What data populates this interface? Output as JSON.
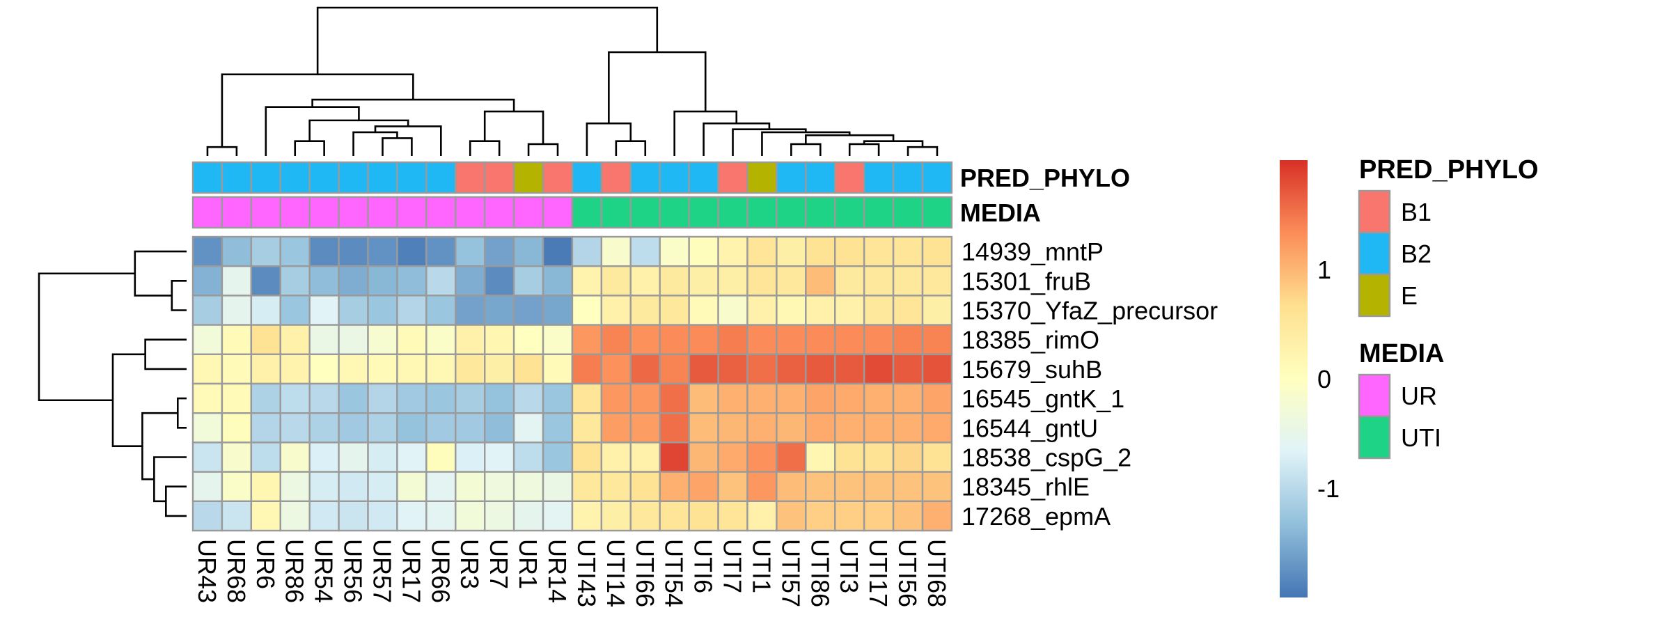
{
  "chart_data": {
    "type": "heatmap",
    "title": "",
    "columns": [
      "UR43",
      "UR68",
      "UR6",
      "UR86",
      "UR54",
      "UR56",
      "UR57",
      "UR17",
      "UR66",
      "UR3",
      "UR7",
      "UR1",
      "UR14",
      "UTI43",
      "UTI14",
      "UTI66",
      "UTI54",
      "UTI6",
      "UTI7",
      "UTI1",
      "UTI57",
      "UTI86",
      "UTI3",
      "UTI17",
      "UTI56",
      "UTI68"
    ],
    "rows": [
      "14939_mntP",
      "15301_fruB",
      "15370_YfaZ_precursor",
      "18385_rimO",
      "15679_suhB",
      "16545_gntK_1",
      "16544_gntU",
      "18538_cspG_2",
      "18345_rhlE",
      "17268_epmA"
    ],
    "values": [
      [
        -1.75,
        -1.35,
        -1.15,
        -1.25,
        -1.8,
        -1.8,
        -1.75,
        -1.9,
        -1.75,
        -1.3,
        -1.6,
        -1.4,
        -1.95,
        -1.05,
        -0.15,
        -0.95,
        -0.1,
        0.05,
        0.25,
        0.55,
        0.35,
        0.6,
        0.6,
        0.55,
        0.55,
        0.6
      ],
      [
        -1.45,
        -0.55,
        -1.8,
        -1.15,
        -1.35,
        -1.5,
        -1.4,
        -1.35,
        -1.0,
        -1.5,
        -1.8,
        -1.15,
        -1.4,
        0.25,
        0.45,
        0.3,
        0.45,
        0.35,
        0.35,
        0.55,
        0.5,
        0.95,
        0.45,
        0.5,
        0.5,
        0.5
      ],
      [
        -1.15,
        -0.55,
        -0.75,
        -1.25,
        -0.65,
        -1.15,
        -1.25,
        -1.05,
        -1.25,
        -1.6,
        -1.55,
        -1.6,
        -1.55,
        0.0,
        0.3,
        0.45,
        0.5,
        0.1,
        -0.15,
        0.3,
        0.15,
        0.3,
        0.3,
        0.5,
        0.55,
        0.35
      ],
      [
        -0.3,
        0.1,
        0.6,
        0.3,
        -0.45,
        -0.45,
        -0.2,
        0.1,
        -0.1,
        0.3,
        0.2,
        0.0,
        -0.1,
        1.25,
        1.4,
        1.3,
        1.35,
        1.35,
        1.45,
        1.35,
        1.35,
        1.35,
        1.35,
        1.35,
        1.4,
        1.4
      ],
      [
        0.15,
        0.1,
        0.3,
        0.25,
        0.0,
        0.15,
        0.1,
        0.15,
        0.15,
        0.5,
        0.35,
        0.6,
        0.1,
        1.45,
        1.3,
        1.6,
        1.4,
        1.7,
        1.65,
        1.55,
        1.65,
        1.7,
        1.7,
        1.8,
        1.7,
        1.75
      ],
      [
        0.1,
        0.1,
        -1.1,
        -0.95,
        -1.0,
        -1.25,
        -1.05,
        -1.2,
        -1.25,
        -1.15,
        -1.3,
        -1.0,
        -1.25,
        0.55,
        1.25,
        1.25,
        1.55,
        0.95,
        1.05,
        1.05,
        1.05,
        1.15,
        1.1,
        1.05,
        1.05,
        1.15
      ],
      [
        -0.3,
        0.05,
        -1.05,
        -1.0,
        -1.1,
        -1.2,
        -1.1,
        -1.3,
        -1.2,
        -1.2,
        -1.35,
        -0.6,
        -1.25,
        0.5,
        1.2,
        1.2,
        1.55,
        0.95,
        1.0,
        1.05,
        1.0,
        1.1,
        1.05,
        1.05,
        1.05,
        1.1
      ],
      [
        -0.85,
        -0.15,
        -0.95,
        -0.15,
        -0.7,
        -0.55,
        -0.75,
        -0.65,
        0.05,
        -0.7,
        -0.65,
        -0.95,
        -1.25,
        0.6,
        0.3,
        0.3,
        1.85,
        1.0,
        1.1,
        1.3,
        1.55,
        0.2,
        0.6,
        0.6,
        0.75,
        0.6
      ],
      [
        -0.55,
        -0.1,
        0.2,
        -0.4,
        -0.75,
        -0.8,
        -0.75,
        -0.25,
        -0.6,
        -0.25,
        -0.35,
        -0.35,
        -0.45,
        0.5,
        0.5,
        0.6,
        1.05,
        1.15,
        0.9,
        1.25,
        0.95,
        0.9,
        0.9,
        0.9,
        0.9,
        0.9
      ],
      [
        -1.0,
        -0.85,
        0.15,
        -0.4,
        -0.8,
        -0.85,
        -0.8,
        -0.65,
        -0.6,
        -0.3,
        -0.4,
        -0.55,
        -0.6,
        0.25,
        0.35,
        0.5,
        0.55,
        0.6,
        0.55,
        0.3,
        0.9,
        0.8,
        0.8,
        0.8,
        0.9,
        1.05
      ]
    ],
    "annotations": {
      "PRED_PHYLO": [
        "B2",
        "B2",
        "B2",
        "B2",
        "B2",
        "B2",
        "B2",
        "B2",
        "B2",
        "B1",
        "B1",
        "E",
        "B1",
        "B2",
        "B1",
        "B2",
        "B2",
        "B2",
        "B1",
        "E",
        "B2",
        "B2",
        "B1",
        "B2",
        "B2",
        "B2"
      ],
      "MEDIA": [
        "UR",
        "UR",
        "UR",
        "UR",
        "UR",
        "UR",
        "UR",
        "UR",
        "UR",
        "UR",
        "UR",
        "UR",
        "UR",
        "UTI",
        "UTI",
        "UTI",
        "UTI",
        "UTI",
        "UTI",
        "UTI",
        "UTI",
        "UTI",
        "UTI",
        "UTI",
        "UTI",
        "UTI"
      ]
    },
    "annotation_order": [
      "PRED_PHYLO",
      "MEDIA"
    ],
    "colorbar": {
      "ticks": [
        1,
        0,
        -1
      ],
      "range": [
        -2,
        2
      ]
    },
    "legends": [
      {
        "title": "PRED_PHYLO",
        "items": [
          {
            "label": "B1",
            "color": "#F8766D"
          },
          {
            "label": "B2",
            "color": "#1FB8F5"
          },
          {
            "label": "E",
            "color": "#B4B400"
          }
        ]
      },
      {
        "title": "MEDIA",
        "items": [
          {
            "label": "UR",
            "color": "#FF66FF"
          },
          {
            "label": "UTI",
            "color": "#1ED386"
          }
        ]
      }
    ],
    "annotation_colors": {
      "PRED_PHYLO": {
        "B1": "#F8766D",
        "B2": "#1FB8F5",
        "E": "#B4B400"
      },
      "MEDIA": {
        "UR": "#FF66FF",
        "UTI": "#1ED386"
      }
    },
    "palette": [
      "#4575B4",
      "#91BFDB",
      "#E0F3F8",
      "#FFFFBF",
      "#FEE090",
      "#FC8D59",
      "#D73027"
    ]
  }
}
